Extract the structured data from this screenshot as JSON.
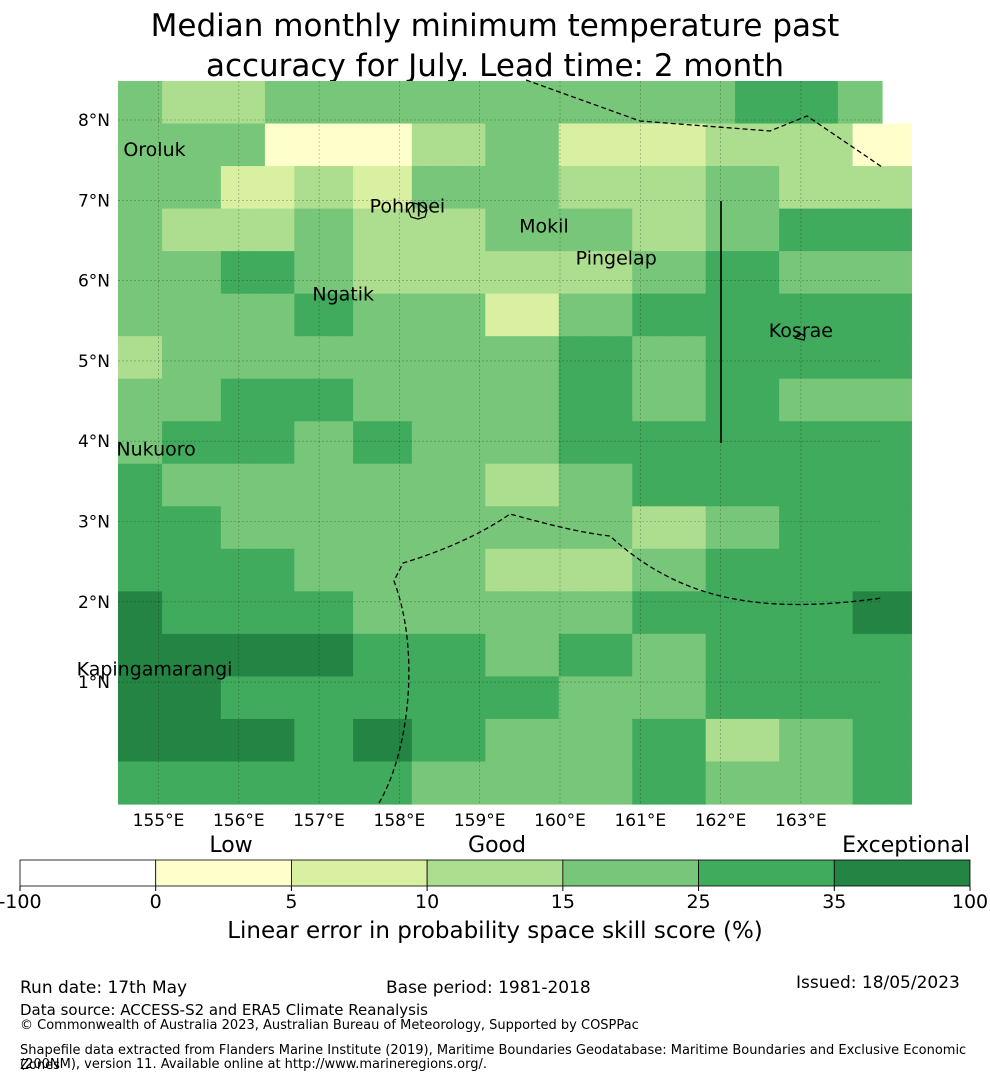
{
  "title_line1": "Median monthly minimum temperature past",
  "title_line2": "accuracy for July. Lead time: 2 month",
  "map": {
    "x_ticks": [
      "155°E",
      "156°E",
      "157°E",
      "158°E",
      "159°E",
      "160°E",
      "161°E",
      "162°E",
      "163°E"
    ],
    "y_ticks": [
      "8°N",
      "7°N",
      "6°N",
      "5°N",
      "4°N",
      "3°N",
      "2°N",
      "1°N"
    ],
    "places": [
      {
        "name": "Oroluk",
        "lon": 154.95,
        "lat": 7.55
      },
      {
        "name": "Pohnpei",
        "lon": 158.1,
        "lat": 6.85
      },
      {
        "name": "Mokil",
        "lon": 159.8,
        "lat": 6.6
      },
      {
        "name": "Pingelap",
        "lon": 160.7,
        "lat": 6.2
      },
      {
        "name": "Ngatik",
        "lon": 157.3,
        "lat": 5.75
      },
      {
        "name": "Kosrae",
        "lon": 163.0,
        "lat": 5.3
      },
      {
        "name": "Nukuoro",
        "lon": 154.97,
        "lat": 3.82
      },
      {
        "name": "Kapingamarangi",
        "lon": 154.95,
        "lat": 1.08
      }
    ],
    "palette": [
      "#ffffff",
      "#ffffcc",
      "#d9f0a3",
      "#addd8e",
      "#78c679",
      "#41ab5d",
      "#238443"
    ],
    "grid": [
      [
        4,
        4,
        4,
        3,
        3,
        3,
        3,
        3,
        3,
        3,
        4,
        4,
        4,
        4,
        4,
        4,
        4,
        4,
        4,
        4,
        4,
        4,
        4,
        4,
        4,
        4,
        4,
        4,
        4,
        4,
        4,
        4,
        4,
        4,
        4,
        4,
        4,
        4,
        4,
        4,
        4,
        4,
        5,
        5,
        5,
        5,
        5,
        5,
        5,
        4,
        4,
        4
      ],
      [
        4,
        4,
        4,
        4,
        4,
        4,
        4,
        4,
        4,
        4,
        1,
        1,
        1,
        1,
        1,
        1,
        1,
        1,
        1,
        1,
        3,
        3,
        3,
        3,
        3,
        4,
        4,
        4,
        4,
        4,
        2,
        2,
        2,
        2,
        2,
        2,
        2,
        2,
        2,
        2,
        3,
        3,
        3,
        3,
        3,
        3,
        3,
        3,
        3,
        3,
        1,
        1,
        1,
        1
      ],
      [
        4,
        4,
        4,
        4,
        4,
        4,
        4,
        2,
        2,
        2,
        2,
        2,
        3,
        3,
        3,
        3,
        2,
        2,
        2,
        2,
        4,
        4,
        4,
        4,
        4,
        4,
        4,
        4,
        4,
        4,
        3,
        3,
        3,
        3,
        3,
        3,
        3,
        3,
        3,
        3,
        4,
        4,
        4,
        4,
        4,
        3,
        3,
        3,
        3,
        3,
        3,
        3,
        3,
        3
      ],
      [
        4,
        4,
        4,
        3,
        3,
        3,
        3,
        3,
        3,
        3,
        3,
        3,
        4,
        4,
        4,
        4,
        3,
        3,
        3,
        3,
        3,
        3,
        3,
        3,
        3,
        4,
        4,
        4,
        4,
        4,
        4,
        4,
        4,
        4,
        4,
        3,
        3,
        3,
        3,
        3,
        4,
        4,
        4,
        4,
        4,
        5,
        5,
        5,
        5,
        5,
        5,
        5,
        5,
        5
      ],
      [
        4,
        4,
        4,
        4,
        4,
        4,
        4,
        5,
        5,
        5,
        5,
        5,
        4,
        4,
        4,
        4,
        3,
        3,
        3,
        3,
        3,
        3,
        3,
        3,
        3,
        3,
        3,
        3,
        3,
        3,
        3,
        3,
        3,
        3,
        3,
        4,
        4,
        4,
        4,
        4,
        5,
        5,
        5,
        5,
        5,
        4,
        4,
        4,
        4,
        4,
        4,
        4,
        4,
        4
      ],
      [
        4,
        4,
        4,
        4,
        4,
        4,
        4,
        4,
        4,
        4,
        4,
        4,
        5,
        5,
        5,
        5,
        4,
        4,
        4,
        4,
        4,
        4,
        4,
        4,
        4,
        2,
        2,
        2,
        2,
        2,
        4,
        4,
        4,
        4,
        4,
        5,
        5,
        5,
        5,
        5,
        5,
        5,
        5,
        5,
        5,
        5,
        5,
        5,
        5,
        5,
        5,
        5,
        5,
        5
      ],
      [
        3,
        3,
        3,
        4,
        4,
        4,
        4,
        4,
        4,
        4,
        4,
        4,
        4,
        4,
        4,
        4,
        4,
        4,
        4,
        4,
        4,
        4,
        4,
        4,
        4,
        4,
        4,
        4,
        4,
        4,
        5,
        5,
        5,
        5,
        5,
        4,
        4,
        4,
        4,
        4,
        5,
        5,
        5,
        5,
        5,
        5,
        5,
        5,
        5,
        5,
        5,
        5,
        5,
        5
      ],
      [
        4,
        4,
        4,
        4,
        4,
        4,
        4,
        5,
        5,
        5,
        5,
        5,
        5,
        5,
        5,
        5,
        4,
        4,
        4,
        4,
        4,
        4,
        4,
        4,
        4,
        4,
        4,
        4,
        4,
        4,
        5,
        5,
        5,
        5,
        5,
        4,
        4,
        4,
        4,
        4,
        5,
        5,
        5,
        5,
        5,
        4,
        4,
        4,
        4,
        4,
        4,
        4,
        4,
        4
      ],
      [
        4,
        4,
        4,
        5,
        5,
        5,
        5,
        5,
        5,
        5,
        5,
        5,
        4,
        4,
        4,
        4,
        5,
        5,
        5,
        5,
        4,
        4,
        4,
        4,
        4,
        4,
        4,
        4,
        4,
        4,
        5,
        5,
        5,
        5,
        5,
        5,
        5,
        5,
        5,
        5,
        5,
        5,
        5,
        5,
        5,
        5,
        5,
        5,
        5,
        5,
        5,
        5,
        5,
        5
      ],
      [
        5,
        5,
        5,
        4,
        4,
        4,
        4,
        4,
        4,
        4,
        4,
        4,
        4,
        4,
        4,
        4,
        4,
        4,
        4,
        4,
        4,
        4,
        4,
        4,
        4,
        3,
        3,
        3,
        3,
        3,
        4,
        4,
        4,
        4,
        4,
        5,
        5,
        5,
        5,
        5,
        5,
        5,
        5,
        5,
        5,
        5,
        5,
        5,
        5,
        5,
        5,
        5,
        5,
        5
      ],
      [
        5,
        5,
        5,
        5,
        5,
        5,
        5,
        4,
        4,
        4,
        4,
        4,
        4,
        4,
        4,
        4,
        4,
        4,
        4,
        4,
        4,
        4,
        4,
        4,
        4,
        4,
        4,
        4,
        4,
        4,
        4,
        4,
        4,
        4,
        4,
        3,
        3,
        3,
        3,
        3,
        4,
        4,
        4,
        4,
        4,
        5,
        5,
        5,
        5,
        5,
        5,
        5,
        5,
        5
      ],
      [
        5,
        5,
        5,
        5,
        5,
        5,
        5,
        5,
        5,
        5,
        5,
        5,
        4,
        4,
        4,
        4,
        4,
        4,
        4,
        4,
        4,
        4,
        4,
        4,
        4,
        3,
        3,
        3,
        3,
        3,
        3,
        3,
        3,
        3,
        3,
        4,
        4,
        4,
        4,
        4,
        5,
        5,
        5,
        5,
        5,
        5,
        5,
        5,
        5,
        5,
        5,
        5,
        5,
        5
      ],
      [
        6,
        6,
        6,
        5,
        5,
        5,
        5,
        5,
        5,
        5,
        5,
        5,
        5,
        5,
        5,
        5,
        4,
        4,
        4,
        4,
        4,
        4,
        4,
        4,
        4,
        4,
        4,
        4,
        4,
        4,
        4,
        4,
        4,
        4,
        4,
        5,
        5,
        5,
        5,
        5,
        5,
        5,
        5,
        5,
        5,
        5,
        5,
        5,
        5,
        5,
        6,
        6,
        6,
        6
      ],
      [
        6,
        6,
        6,
        6,
        6,
        6,
        6,
        6,
        6,
        6,
        6,
        6,
        6,
        6,
        6,
        6,
        5,
        5,
        5,
        5,
        5,
        5,
        5,
        5,
        5,
        4,
        4,
        4,
        4,
        4,
        5,
        5,
        5,
        5,
        5,
        4,
        4,
        4,
        4,
        4,
        5,
        5,
        5,
        5,
        5,
        5,
        5,
        5,
        5,
        5,
        5,
        5,
        5,
        5
      ],
      [
        6,
        6,
        6,
        6,
        6,
        6,
        6,
        5,
        5,
        5,
        5,
        5,
        5,
        5,
        5,
        5,
        5,
        5,
        5,
        5,
        5,
        5,
        5,
        5,
        5,
        5,
        5,
        5,
        5,
        5,
        4,
        4,
        4,
        4,
        4,
        4,
        4,
        4,
        4,
        4,
        5,
        5,
        5,
        5,
        5,
        5,
        5,
        5,
        5,
        5,
        5,
        5,
        5,
        5
      ],
      [
        6,
        6,
        6,
        6,
        6,
        6,
        6,
        6,
        6,
        6,
        6,
        6,
        5,
        5,
        5,
        5,
        6,
        6,
        6,
        6,
        5,
        5,
        5,
        5,
        5,
        4,
        4,
        4,
        4,
        4,
        4,
        4,
        4,
        4,
        4,
        5,
        5,
        5,
        5,
        5,
        3,
        3,
        3,
        3,
        3,
        4,
        4,
        4,
        4,
        4,
        5,
        5,
        5,
        5
      ],
      [
        5,
        5,
        5,
        5,
        5,
        5,
        5,
        5,
        5,
        5,
        5,
        5,
        5,
        5,
        5,
        5,
        5,
        5,
        5,
        5,
        4,
        4,
        4,
        4,
        4,
        4,
        4,
        4,
        4,
        4,
        4,
        4,
        4,
        4,
        4,
        5,
        5,
        5,
        5,
        5,
        4,
        4,
        4,
        4,
        4,
        4,
        4,
        4,
        4,
        4,
        5,
        5,
        5,
        5
      ]
    ]
  },
  "colorbar": {
    "categories": [
      "Low",
      "Good",
      "Exceptional"
    ],
    "ticks": [
      "-100",
      "0",
      "5",
      "10",
      "15",
      "25",
      "35",
      "100"
    ],
    "colors": [
      "#ffffff",
      "#ffffcc",
      "#d9f0a3",
      "#addd8e",
      "#78c679",
      "#41ab5d",
      "#238443"
    ],
    "title": "Linear error in probability space skill score (%)"
  },
  "footer": {
    "run_date": "Run date: 17th May",
    "base_period": "Base period: 1981-2018",
    "issued": "Issued: 18/05/2023",
    "data_source": "Data source: ACCESS-S2 and ERA5 Climate Reanalysis",
    "copyright": "© Commonwealth of Australia 2023, Australian Bureau of Meteorology, Supported by COSPPac",
    "shapefile_line1": "Shapefile data extracted from Flanders Marine Institute (2019), Maritime Boundaries Geodatabase: Maritime Boundaries and Exclusive Economic Zones",
    "shapefile_line2": "(200NM), version 11. Available online at http://www.marineregions.org/."
  }
}
